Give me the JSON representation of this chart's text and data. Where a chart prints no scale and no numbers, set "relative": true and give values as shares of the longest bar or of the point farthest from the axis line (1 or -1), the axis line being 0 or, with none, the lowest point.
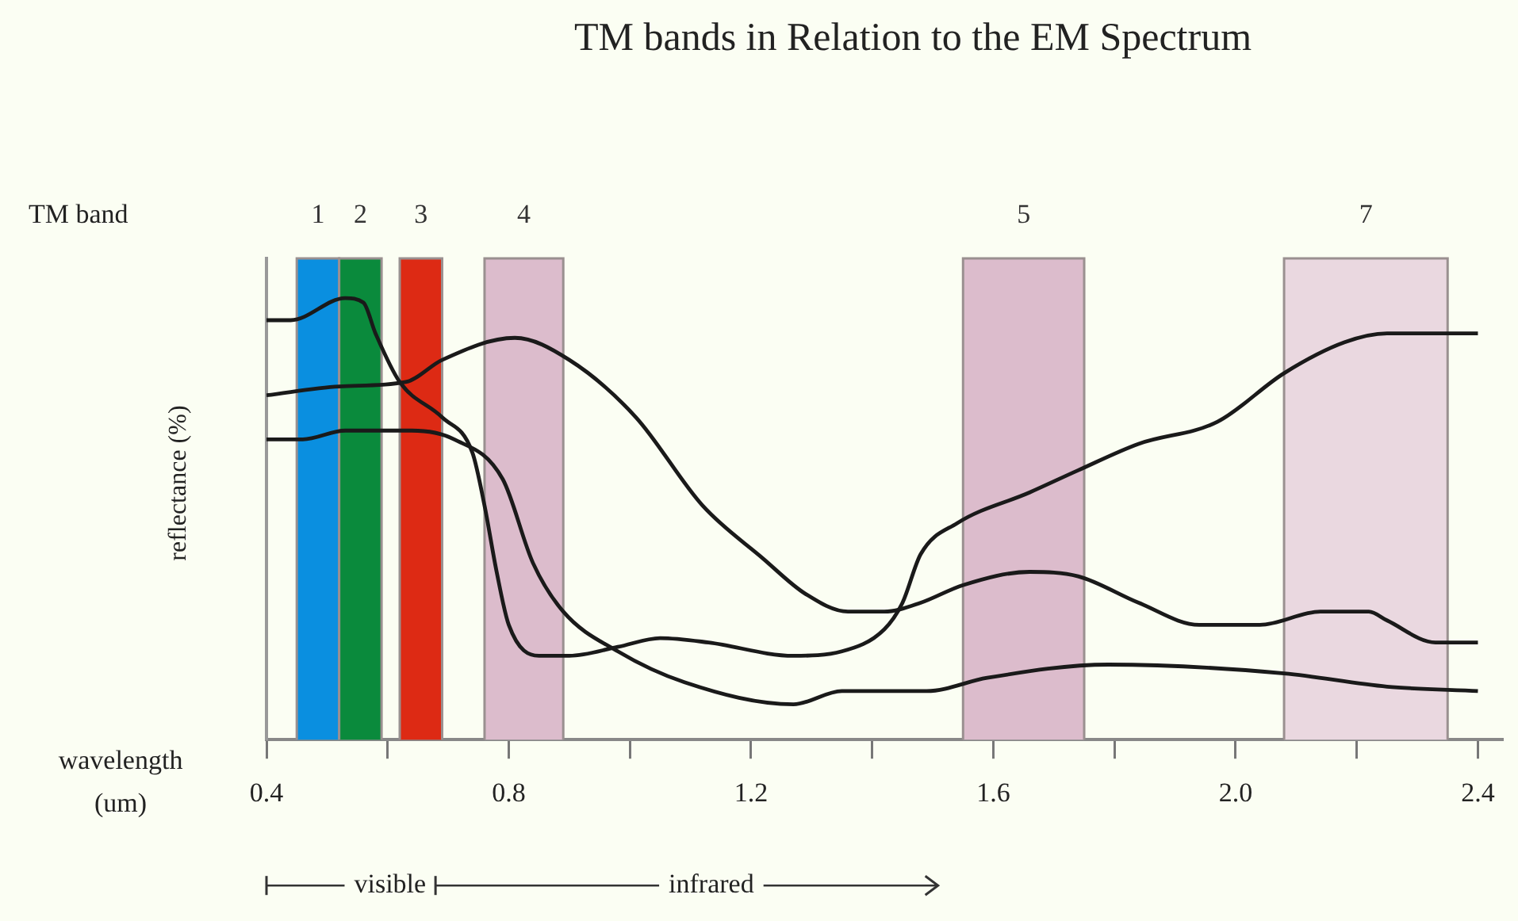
{
  "chart_data": {
    "type": "line",
    "title": "TM bands in Relation to the EM Spectrum",
    "xlabel": "wavelength (um)",
    "ylabel": "reflectance (%)",
    "relative": true,
    "legend": false,
    "grid": false,
    "xlim": [
      0.4,
      2.44
    ],
    "xticks": [
      0.4,
      {
        "value": 0.6,
        "label": null
      },
      0.8,
      {
        "value": 1.0,
        "label": null
      },
      1.2,
      {
        "value": 1.4,
        "label": null
      },
      1.6,
      {
        "value": 1.8,
        "label": null
      },
      {
        "value": 2.0,
        "label": "2.0"
      },
      {
        "value": 2.2,
        "label": null
      },
      2.4
    ],
    "bands": [
      {
        "axis": "x",
        "from": 0.45,
        "to": 0.52,
        "label": "1",
        "color": "#0a8fe0"
      },
      {
        "axis": "x",
        "from": 0.52,
        "to": 0.59,
        "label": "2",
        "color": "#0a8a3c"
      },
      {
        "axis": "x",
        "from": 0.62,
        "to": 0.69,
        "label": "3",
        "color": "#dd2a14"
      },
      {
        "axis": "x",
        "from": 0.76,
        "to": 0.89,
        "label": "4",
        "color": "#dcbccc"
      },
      {
        "axis": "x",
        "from": 1.55,
        "to": 1.75,
        "label": "5",
        "color": "#dcbccc"
      },
      {
        "axis": "x",
        "from": 2.08,
        "to": 2.35,
        "label": "7",
        "color": "#ead8e0"
      }
    ],
    "series": [
      {
        "color": "#1a1a1a",
        "x": [
          0.4,
          0.44,
          0.53,
          0.56,
          0.58,
          0.62,
          0.69,
          0.74,
          0.76,
          0.78,
          0.8,
          0.85,
          0.9,
          0.98,
          1.05,
          1.13,
          1.27,
          1.35,
          1.42,
          1.45,
          1.48,
          1.54,
          1.66,
          1.74,
          1.84,
          1.97,
          2.08,
          2.18,
          2.25,
          2.4
        ],
        "values": [
          0.95,
          0.95,
          1.0,
          0.99,
          0.92,
          0.81,
          0.73,
          0.65,
          0.53,
          0.38,
          0.26,
          0.19,
          0.19,
          0.21,
          0.23,
          0.22,
          0.19,
          0.2,
          0.25,
          0.31,
          0.42,
          0.49,
          0.56,
          0.61,
          0.67,
          0.72,
          0.83,
          0.9,
          0.92,
          0.92
        ]
      },
      {
        "color": "#1a1a1a",
        "x": [
          0.4,
          0.52,
          0.63,
          0.69,
          0.81,
          0.9,
          1.01,
          1.12,
          1.22,
          1.29,
          1.36,
          1.42,
          1.48,
          1.55,
          1.66,
          1.74,
          1.84,
          1.94,
          2.04,
          2.14,
          2.22,
          2.25,
          2.33,
          2.4
        ],
        "values": [
          0.78,
          0.8,
          0.81,
          0.86,
          0.91,
          0.86,
          0.73,
          0.53,
          0.41,
          0.33,
          0.29,
          0.29,
          0.31,
          0.35,
          0.38,
          0.37,
          0.31,
          0.26,
          0.26,
          0.29,
          0.29,
          0.27,
          0.22,
          0.22
        ]
      },
      {
        "color": "#1a1a1a",
        "x": [
          0.4,
          0.46,
          0.53,
          0.64,
          0.71,
          0.79,
          0.84,
          0.89,
          0.98,
          1.09,
          1.27,
          1.35,
          1.49,
          1.59,
          1.79,
          2.08,
          2.25,
          2.4
        ],
        "values": [
          0.68,
          0.68,
          0.7,
          0.7,
          0.68,
          0.59,
          0.4,
          0.29,
          0.2,
          0.13,
          0.08,
          0.11,
          0.11,
          0.14,
          0.17,
          0.15,
          0.12,
          0.11
        ]
      }
    ],
    "annotations": [
      "TM band",
      "visible",
      "infrared"
    ]
  }
}
